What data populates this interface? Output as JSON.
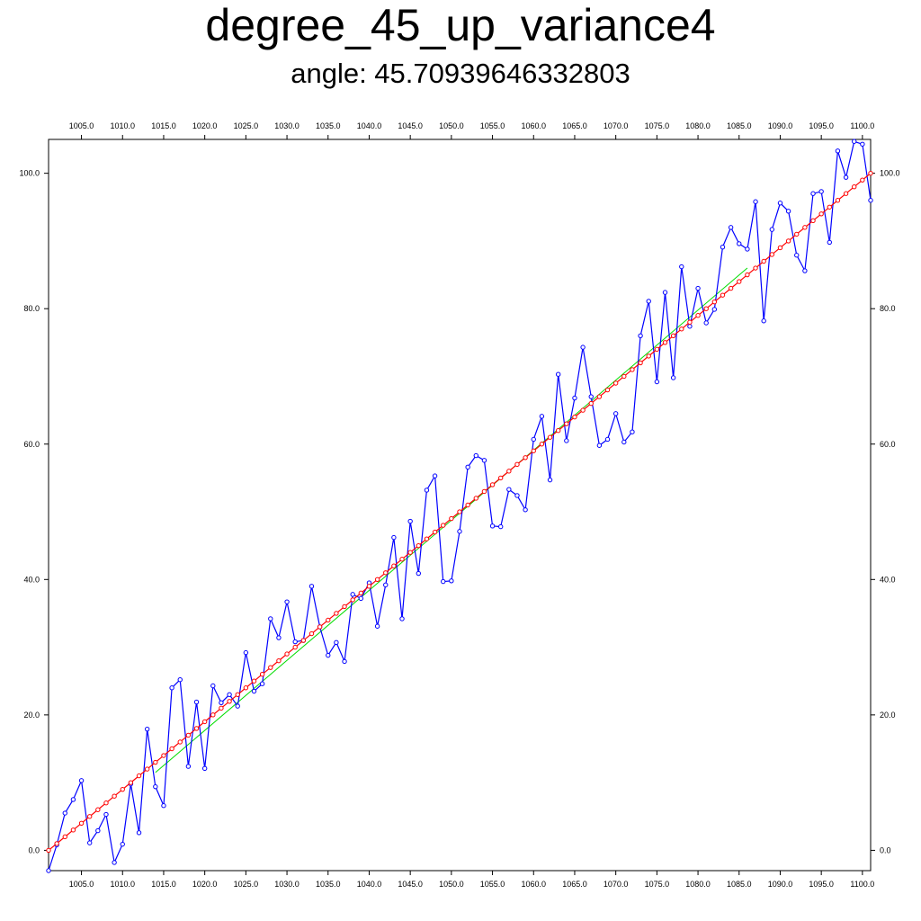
{
  "chart_data": {
    "type": "line",
    "title": "degree_45_up_variance4",
    "subtitle": "angle: 45.70939646332803",
    "xlabel": "",
    "ylabel": "",
    "xlim": [
      1001,
      1101
    ],
    "ylim": [
      -3,
      105
    ],
    "x_ticks": [
      1005,
      1010,
      1015,
      1020,
      1025,
      1030,
      1035,
      1040,
      1045,
      1050,
      1055,
      1060,
      1065,
      1070,
      1075,
      1080,
      1085,
      1090,
      1095,
      1100
    ],
    "x_tick_labels": [
      "1005.0",
      "1010.0",
      "1015.0",
      "1020.0",
      "1025.0",
      "1030.0",
      "1035.0",
      "1040.0",
      "1045.0",
      "1050.0",
      "1055.0",
      "1060.0",
      "1065.0",
      "1070.0",
      "1075.0",
      "1080.0",
      "1085.0",
      "1090.0",
      "1095.0",
      "1100.0"
    ],
    "y_ticks": [
      0,
      20,
      40,
      60,
      80,
      100
    ],
    "y_tick_labels": [
      "0.0",
      "20.0",
      "40.0",
      "60.0",
      "80.0",
      "100.0"
    ],
    "grid": false,
    "legend": "none",
    "x": [
      1001,
      1002,
      1003,
      1004,
      1005,
      1006,
      1007,
      1008,
      1009,
      1010,
      1011,
      1012,
      1013,
      1014,
      1015,
      1016,
      1017,
      1018,
      1019,
      1020,
      1021,
      1022,
      1023,
      1024,
      1025,
      1026,
      1027,
      1028,
      1029,
      1030,
      1031,
      1032,
      1033,
      1034,
      1035,
      1036,
      1037,
      1038,
      1039,
      1040,
      1041,
      1042,
      1043,
      1044,
      1045,
      1046,
      1047,
      1048,
      1049,
      1050,
      1051,
      1052,
      1053,
      1054,
      1055,
      1056,
      1057,
      1058,
      1059,
      1060,
      1061,
      1062,
      1063,
      1064,
      1065,
      1066,
      1067,
      1068,
      1069,
      1070,
      1071,
      1072,
      1073,
      1074,
      1075,
      1076,
      1077,
      1078,
      1079,
      1080,
      1081,
      1082,
      1083,
      1084,
      1085,
      1086,
      1087,
      1088,
      1089,
      1090,
      1091,
      1092,
      1093,
      1094,
      1095,
      1096,
      1097,
      1098,
      1099,
      1100,
      1101
    ],
    "series": [
      {
        "color": "#0000ff",
        "marker": "circle",
        "values": [
          -3.0,
          0.8,
          5.5,
          7.5,
          10.3,
          1.1,
          2.9,
          5.3,
          -1.8,
          0.9,
          9.8,
          2.6,
          17.9,
          9.4,
          6.6,
          24.0,
          25.2,
          12.4,
          21.9,
          12.1,
          24.3,
          21.8,
          23.0,
          21.3,
          29.2,
          23.5,
          24.6,
          34.2,
          31.4,
          36.7,
          30.8,
          31.0,
          39.0,
          33.0,
          28.8,
          30.7,
          27.9,
          37.8,
          37.2,
          39.5,
          33.1,
          39.2,
          46.2,
          34.2,
          48.6,
          40.9,
          53.2,
          55.3,
          39.7,
          39.8,
          47.1,
          56.6,
          58.3,
          57.6,
          47.9,
          47.8,
          53.3,
          52.4,
          50.3,
          60.7,
          64.1,
          54.7,
          70.3,
          60.5,
          66.8,
          74.3,
          67.0,
          59.8,
          60.7,
          64.5,
          60.3,
          61.8,
          76.0,
          81.1,
          69.2,
          82.4,
          69.8,
          86.2,
          77.4,
          83.0,
          77.9,
          79.9,
          89.1,
          92.0,
          89.6,
          88.8,
          95.8,
          78.2,
          91.7,
          95.6,
          94.4,
          87.9,
          85.6,
          97.0,
          97.3,
          89.8,
          103.3,
          99.4,
          104.7,
          104.3,
          96.0
        ]
      },
      {
        "color": "#ff0000",
        "marker": "circle",
        "values": [
          0,
          1,
          2,
          3,
          4,
          5,
          6,
          7,
          8,
          9,
          10,
          11,
          12,
          13,
          14,
          15,
          16,
          17,
          18,
          19,
          20,
          21,
          22,
          23,
          24,
          25,
          26,
          27,
          28,
          29,
          30,
          31,
          32,
          33,
          34,
          35,
          36,
          37,
          38,
          39,
          40,
          41,
          42,
          43,
          44,
          45,
          46,
          47,
          48,
          49,
          50,
          51,
          52,
          53,
          54,
          55,
          56,
          57,
          58,
          59,
          60,
          61,
          62,
          63,
          64,
          65,
          66,
          67,
          68,
          69,
          70,
          71,
          72,
          73,
          74,
          75,
          76,
          77,
          78,
          79,
          80,
          81,
          82,
          83,
          84,
          85,
          86,
          87,
          88,
          89,
          90,
          91,
          92,
          93,
          94,
          95,
          96,
          97,
          98,
          99,
          100
        ]
      }
    ],
    "fit_line": {
      "color": "#00dd00",
      "x": [
        1014,
        1086
      ],
      "y": [
        11.5,
        86.0
      ]
    }
  }
}
